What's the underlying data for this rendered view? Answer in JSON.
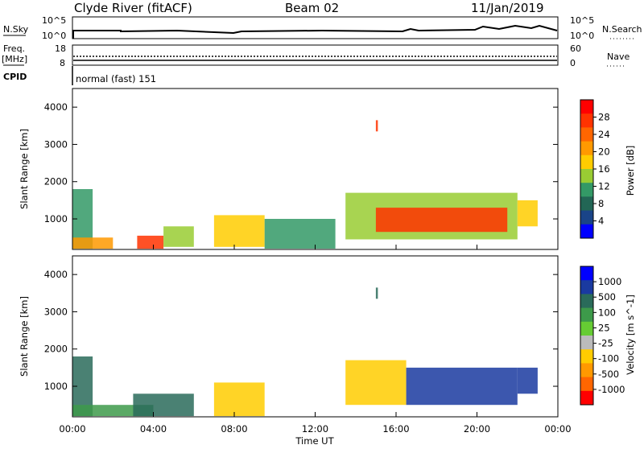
{
  "header": {
    "station": "Clyde River (fitACF)",
    "beam": "Beam 02",
    "date": "11/Jan/2019"
  },
  "time_axis": {
    "ticks": [
      "00:00",
      "04:00",
      "08:00",
      "12:00",
      "16:00",
      "20:00",
      "00:00"
    ],
    "label": "Time UT"
  },
  "nsky_panel": {
    "left_label": "N.Sky",
    "right_label": "N.Search",
    "left_ticks": [
      "10^5",
      "10^0"
    ],
    "right_ticks": [
      "10^5",
      "10^0"
    ]
  },
  "freq_panel": {
    "left_label_top": "Freq.",
    "left_label_bottom": "[MHz]",
    "right_label": "Nave",
    "left_ticks": [
      "18",
      "8"
    ],
    "right_ticks": [
      "60",
      "0"
    ]
  },
  "cpid": {
    "label": "CPID",
    "value": "normal (fast) 151"
  },
  "colorbars": {
    "power": {
      "label": "Power [dB]",
      "ticks": [
        "28",
        "24",
        "20",
        "16",
        "12",
        "8",
        "4"
      ],
      "colors": [
        "#ff0000",
        "#ff3300",
        "#ff6600",
        "#ff9900",
        "#ffcc00",
        "#99cc33",
        "#339966",
        "#226655",
        "#1a4488",
        "#0000ff"
      ]
    },
    "velocity": {
      "label": "Velocity [m s^-1]",
      "ticks": [
        "1000",
        "500",
        "100",
        "25",
        "-25",
        "-100",
        "-500",
        "-1000"
      ],
      "colors": [
        "#0000ff",
        "#1a3aa0",
        "#2a6b5a",
        "#3d9a4a",
        "#66cc33",
        "#bbbbbb",
        "#ffcc00",
        "#ff9900",
        "#ff6600",
        "#ff0000"
      ]
    }
  },
  "chart_data": [
    {
      "type": "heatmap",
      "name": "power",
      "xlabel": "",
      "ylabel": "Slant Range [km]",
      "xlim": [
        "00:00",
        "24:00"
      ],
      "ylim": [
        180,
        4500
      ],
      "yticks": [
        1000,
        2000,
        3000,
        4000
      ],
      "regions": [
        {
          "t0": 0.0,
          "t1": 1.0,
          "r0": 200,
          "r1": 1800,
          "level": 10
        },
        {
          "t0": 0.0,
          "t1": 2.0,
          "r0": 200,
          "r1": 500,
          "level": 20
        },
        {
          "t0": 3.2,
          "t1": 4.5,
          "r0": 200,
          "r1": 550,
          "level": 27
        },
        {
          "t0": 4.5,
          "t1": 6.0,
          "r0": 250,
          "r1": 800,
          "level": 14
        },
        {
          "t0": 7.0,
          "t1": 9.5,
          "r0": 250,
          "r1": 1100,
          "level": 17
        },
        {
          "t0": 9.5,
          "t1": 13.0,
          "r0": 200,
          "r1": 1000,
          "level": 10
        },
        {
          "t0": 13.5,
          "t1": 22.0,
          "r0": 450,
          "r1": 1700,
          "level": 14
        },
        {
          "t0": 15.0,
          "t1": 21.5,
          "r0": 650,
          "r1": 1300,
          "level": 26
        },
        {
          "t0": 22.0,
          "t1": 23.0,
          "r0": 800,
          "r1": 1500,
          "level": 16
        },
        {
          "t0": 15.0,
          "t1": 15.1,
          "r0": 3350,
          "r1": 3650,
          "level": 25
        }
      ]
    },
    {
      "type": "heatmap",
      "name": "velocity",
      "xlabel": "Time UT",
      "ylabel": "Slant Range [km]",
      "xlim": [
        "00:00",
        "24:00"
      ],
      "ylim": [
        180,
        4500
      ],
      "yticks": [
        1000,
        2000,
        3000,
        4000
      ],
      "regions": [
        {
          "t0": 0.0,
          "t1": 1.0,
          "r0": 200,
          "r1": 1800,
          "level": 100
        },
        {
          "t0": 0.0,
          "t1": 4.0,
          "r0": 200,
          "r1": 500,
          "level": 50
        },
        {
          "t0": 3.0,
          "t1": 6.0,
          "r0": 200,
          "r1": 800,
          "level": 200
        },
        {
          "t0": 7.0,
          "t1": 9.5,
          "r0": 200,
          "r1": 1100,
          "level": -200
        },
        {
          "t0": 13.5,
          "t1": 16.5,
          "r0": 500,
          "r1": 1700,
          "level": -400
        },
        {
          "t0": 16.5,
          "t1": 22.0,
          "r0": 500,
          "r1": 1500,
          "level": 800
        },
        {
          "t0": 22.0,
          "t1": 23.0,
          "r0": 800,
          "r1": 1500,
          "level": 600
        },
        {
          "t0": 15.0,
          "t1": 15.1,
          "r0": 3350,
          "r1": 3650,
          "level": 100
        }
      ]
    }
  ]
}
